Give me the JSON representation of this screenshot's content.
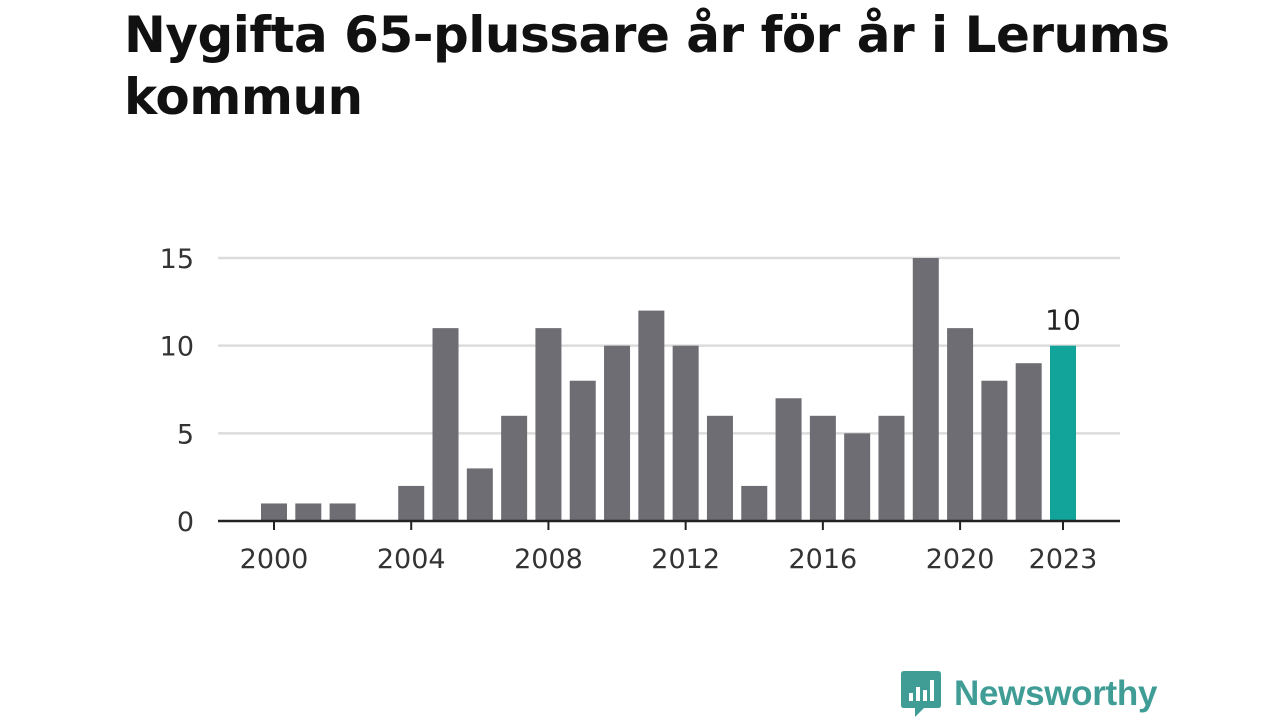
{
  "chart_data": {
    "type": "bar",
    "title": "Nygifta 65-plussare år för år i Lerums kommun",
    "xlabel": "",
    "ylabel": "",
    "x": [
      2000,
      2001,
      2002,
      2003,
      2004,
      2005,
      2006,
      2007,
      2008,
      2009,
      2010,
      2011,
      2012,
      2013,
      2014,
      2015,
      2016,
      2017,
      2018,
      2019,
      2020,
      2021,
      2022,
      2023
    ],
    "values": [
      1,
      1,
      1,
      0,
      2,
      11,
      3,
      6,
      11,
      8,
      10,
      12,
      10,
      6,
      2,
      7,
      6,
      5,
      6,
      15,
      11,
      8,
      9,
      10
    ],
    "ylim": [
      0,
      15
    ],
    "yticks": [
      0,
      5,
      10,
      15
    ],
    "xticks": [
      "2000",
      "2004",
      "2008",
      "2012",
      "2016",
      "2020",
      "2023"
    ],
    "highlight": {
      "x": 2023,
      "label": "10"
    },
    "grid": true,
    "colors": {
      "bar": "#6d6d73",
      "highlight": "#12a39a",
      "grid": "#dcdcdc",
      "axis": "#222222"
    }
  },
  "brand": {
    "name": "Newsworthy",
    "color": "#3f9d96"
  }
}
